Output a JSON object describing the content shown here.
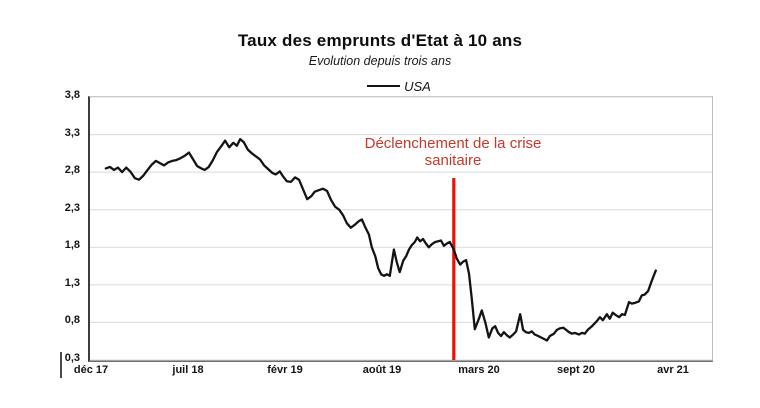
{
  "figure": {
    "title": "Taux des emprunts d'Etat à 10 ans",
    "subtitle": "Evolution depuis trois ans",
    "legend": {
      "label": "USA",
      "series_color": "#141414"
    },
    "annotation": {
      "line1": "Déclenchement de la crise",
      "line2": "sanitaire",
      "text_color": "#C6392C",
      "line_color": "#EE1100"
    }
  },
  "chart_data": {
    "type": "line",
    "title": "Taux des emprunts d'Etat à 10 ans",
    "subtitle": "Evolution depuis trois ans",
    "xlabel": "",
    "ylabel": "",
    "grid": "horizontal",
    "legend_position": "top-center",
    "x_tick_labels": [
      "déc 17",
      "juil 18",
      "févr 19",
      "août 19",
      "mars 20",
      "sept 20",
      "avr 21"
    ],
    "y_tick_labels": [
      "3,8",
      "3,3",
      "2,8",
      "2,3",
      "1,8",
      "1,3",
      "0,8",
      "0,3"
    ],
    "y_ticks": [
      3.8,
      3.3,
      2.8,
      2.3,
      1.8,
      1.3,
      0.8,
      0.3
    ],
    "ylim": [
      0.3,
      3.8
    ],
    "vline": {
      "t": 0.62,
      "value_at_line": 1.77,
      "color": "#EE1100",
      "label": "Déclenchement de la crise sanitaire"
    },
    "series": [
      {
        "name": "USA",
        "color": "#141414",
        "points": [
          [
            0.022,
            2.85
          ],
          [
            0.029,
            2.87
          ],
          [
            0.036,
            2.83
          ],
          [
            0.043,
            2.86
          ],
          [
            0.05,
            2.8
          ],
          [
            0.057,
            2.86
          ],
          [
            0.064,
            2.81
          ],
          [
            0.072,
            2.72
          ],
          [
            0.079,
            2.7
          ],
          [
            0.086,
            2.75
          ],
          [
            0.093,
            2.82
          ],
          [
            0.101,
            2.9
          ],
          [
            0.108,
            2.95
          ],
          [
            0.115,
            2.92
          ],
          [
            0.122,
            2.89
          ],
          [
            0.129,
            2.93
          ],
          [
            0.136,
            2.95
          ],
          [
            0.143,
            2.96
          ],
          [
            0.149,
            2.98
          ],
          [
            0.158,
            3.02
          ],
          [
            0.165,
            3.06
          ],
          [
            0.172,
            2.97
          ],
          [
            0.179,
            2.88
          ],
          [
            0.186,
            2.85
          ],
          [
            0.192,
            2.83
          ],
          [
            0.199,
            2.87
          ],
          [
            0.206,
            2.96
          ],
          [
            0.213,
            3.07
          ],
          [
            0.22,
            3.14
          ],
          [
            0.227,
            3.22
          ],
          [
            0.234,
            3.13
          ],
          [
            0.241,
            3.19
          ],
          [
            0.247,
            3.15
          ],
          [
            0.253,
            3.24
          ],
          [
            0.259,
            3.2
          ],
          [
            0.266,
            3.1
          ],
          [
            0.273,
            3.05
          ],
          [
            0.28,
            3.01
          ],
          [
            0.287,
            2.97
          ],
          [
            0.294,
            2.89
          ],
          [
            0.301,
            2.84
          ],
          [
            0.308,
            2.79
          ],
          [
            0.314,
            2.77
          ],
          [
            0.321,
            2.81
          ],
          [
            0.326,
            2.75
          ],
          [
            0.333,
            2.68
          ],
          [
            0.34,
            2.67
          ],
          [
            0.347,
            2.73
          ],
          [
            0.354,
            2.7
          ],
          [
            0.361,
            2.57
          ],
          [
            0.368,
            2.44
          ],
          [
            0.375,
            2.48
          ],
          [
            0.381,
            2.54
          ],
          [
            0.388,
            2.56
          ],
          [
            0.395,
            2.58
          ],
          [
            0.402,
            2.55
          ],
          [
            0.409,
            2.43
          ],
          [
            0.416,
            2.34
          ],
          [
            0.423,
            2.3
          ],
          [
            0.43,
            2.22
          ],
          [
            0.436,
            2.12
          ],
          [
            0.443,
            2.06
          ],
          [
            0.45,
            2.1
          ],
          [
            0.457,
            2.15
          ],
          [
            0.462,
            2.17
          ],
          [
            0.467,
            2.08
          ],
          [
            0.474,
            1.97
          ],
          [
            0.479,
            1.8
          ],
          [
            0.485,
            1.68
          ],
          [
            0.49,
            1.52
          ],
          [
            0.495,
            1.44
          ],
          [
            0.5,
            1.42
          ],
          [
            0.505,
            1.44
          ],
          [
            0.51,
            1.42
          ],
          [
            0.517,
            1.77
          ],
          [
            0.522,
            1.6
          ],
          [
            0.527,
            1.47
          ],
          [
            0.533,
            1.62
          ],
          [
            0.538,
            1.68
          ],
          [
            0.543,
            1.77
          ],
          [
            0.548,
            1.83
          ],
          [
            0.553,
            1.87
          ],
          [
            0.557,
            1.93
          ],
          [
            0.562,
            1.88
          ],
          [
            0.567,
            1.91
          ],
          [
            0.572,
            1.85
          ],
          [
            0.577,
            1.8
          ],
          [
            0.582,
            1.84
          ],
          [
            0.588,
            1.87
          ],
          [
            0.593,
            1.88
          ],
          [
            0.598,
            1.89
          ],
          [
            0.603,
            1.82
          ],
          [
            0.608,
            1.85
          ],
          [
            0.613,
            1.87
          ],
          [
            0.62,
            1.77
          ],
          [
            0.625,
            1.65
          ],
          [
            0.631,
            1.57
          ],
          [
            0.636,
            1.61
          ],
          [
            0.641,
            1.63
          ],
          [
            0.646,
            1.45
          ],
          [
            0.651,
            1.1
          ],
          [
            0.656,
            0.71
          ],
          [
            0.663,
            0.85
          ],
          [
            0.668,
            0.96
          ],
          [
            0.674,
            0.8
          ],
          [
            0.68,
            0.6
          ],
          [
            0.686,
            0.72
          ],
          [
            0.691,
            0.75
          ],
          [
            0.696,
            0.66
          ],
          [
            0.701,
            0.62
          ],
          [
            0.706,
            0.67
          ],
          [
            0.711,
            0.63
          ],
          [
            0.716,
            0.6
          ],
          [
            0.722,
            0.64
          ],
          [
            0.727,
            0.68
          ],
          [
            0.734,
            0.91
          ],
          [
            0.739,
            0.7
          ],
          [
            0.744,
            0.67
          ],
          [
            0.749,
            0.66
          ],
          [
            0.754,
            0.68
          ],
          [
            0.759,
            0.64
          ],
          [
            0.765,
            0.62
          ],
          [
            0.77,
            0.6
          ],
          [
            0.775,
            0.58
          ],
          [
            0.78,
            0.56
          ],
          [
            0.785,
            0.62
          ],
          [
            0.792,
            0.65
          ],
          [
            0.797,
            0.7
          ],
          [
            0.802,
            0.72
          ],
          [
            0.808,
            0.73
          ],
          [
            0.813,
            0.7
          ],
          [
            0.818,
            0.67
          ],
          [
            0.823,
            0.65
          ],
          [
            0.828,
            0.66
          ],
          [
            0.835,
            0.64
          ],
          [
            0.84,
            0.66
          ],
          [
            0.845,
            0.65
          ],
          [
            0.85,
            0.7
          ],
          [
            0.856,
            0.74
          ],
          [
            0.861,
            0.78
          ],
          [
            0.866,
            0.82
          ],
          [
            0.871,
            0.87
          ],
          [
            0.876,
            0.83
          ],
          [
            0.883,
            0.91
          ],
          [
            0.888,
            0.85
          ],
          [
            0.893,
            0.93
          ],
          [
            0.898,
            0.9
          ],
          [
            0.904,
            0.87
          ],
          [
            0.909,
            0.91
          ],
          [
            0.914,
            0.9
          ],
          [
            0.921,
            1.07
          ],
          [
            0.926,
            1.05
          ],
          [
            0.931,
            1.06
          ],
          [
            0.938,
            1.08
          ],
          [
            0.943,
            1.16
          ],
          [
            0.948,
            1.17
          ],
          [
            0.954,
            1.22
          ],
          [
            0.959,
            1.33
          ],
          [
            0.964,
            1.43
          ],
          [
            0.967,
            1.49
          ]
        ]
      }
    ]
  }
}
